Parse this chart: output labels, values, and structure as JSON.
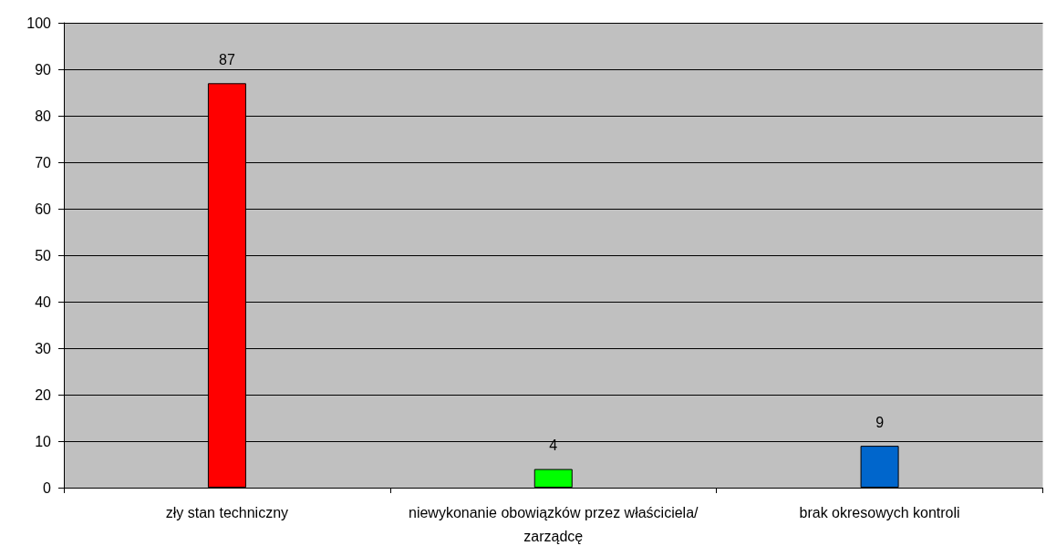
{
  "chart_data": {
    "type": "bar",
    "categories": [
      "zły stan techniczny",
      "niewykonanie obowiązków przez właściciela/zarządcę",
      "brak okresowych kontroli"
    ],
    "values": [
      87,
      4,
      9
    ],
    "colors": [
      "#ff0000",
      "#00ff00",
      "#0066cc"
    ],
    "ylim": [
      0,
      100
    ],
    "yticks": [
      0,
      10,
      20,
      30,
      40,
      50,
      60,
      70,
      80,
      90,
      100
    ],
    "grid": "y",
    "data_labels": true
  }
}
